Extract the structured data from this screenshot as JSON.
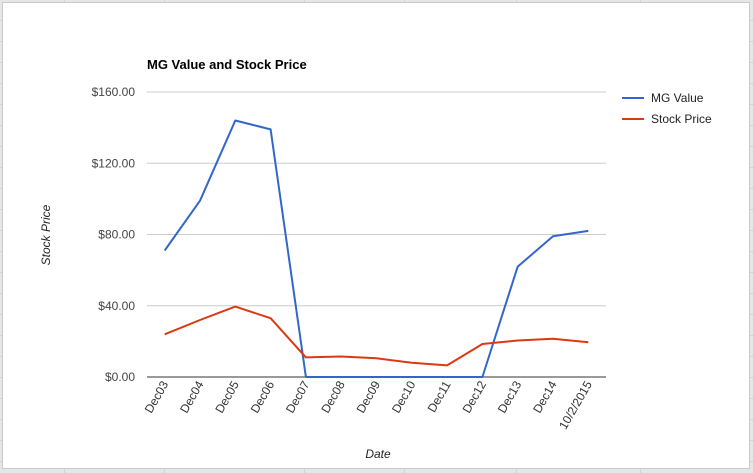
{
  "chart_data": {
    "type": "line",
    "title": "MG Value and Stock Price",
    "xlabel": "Date",
    "ylabel": "Stock Price",
    "categories": [
      "Dec03",
      "Dec04",
      "Dec05",
      "Dec06",
      "Dec07",
      "Dec08",
      "Dec09",
      "Dec10",
      "Dec11",
      "Dec12",
      "Dec13",
      "Dec14",
      "10/2/2015"
    ],
    "ylim": [
      0,
      160
    ],
    "yticks": [
      0,
      40,
      80,
      120,
      160
    ],
    "ytick_labels": [
      "$0.00",
      "$40.00",
      "$80.00",
      "$120.00",
      "$160.00"
    ],
    "grid": true,
    "legend_position": "right",
    "series": [
      {
        "name": "MG Value",
        "color": "#3366cc",
        "values": [
          71,
          99,
          144,
          139,
          0,
          0,
          0,
          0,
          0,
          0,
          62,
          79,
          82
        ]
      },
      {
        "name": "Stock Price",
        "color": "#dc3912",
        "values": [
          24,
          32,
          39.5,
          33,
          11,
          11.5,
          10.5,
          8,
          6.5,
          18.5,
          20.5,
          21.5,
          19.5
        ]
      }
    ]
  }
}
